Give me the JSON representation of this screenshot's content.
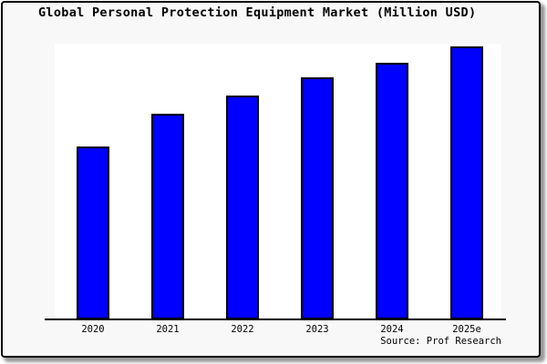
{
  "chart_data": {
    "type": "bar",
    "title": "Global Personal Protection Equipment Market (Million USD)",
    "categories": [
      "2020",
      "2021",
      "2022",
      "2023",
      "2024",
      "2025e"
    ],
    "values": [
      190,
      226,
      246,
      266,
      282,
      300
    ],
    "value_units": "relative units (no y-axis tick labels shown; values proportional to bar heights)",
    "xlabel": "",
    "ylabel": "",
    "ylim": [
      0,
      301
    ],
    "grid": false,
    "legend": false,
    "source": "Source: Prof Research"
  },
  "colors": {
    "bar_fill": "#0000ff",
    "bar_border": "#000000",
    "figure_bg": "#f8f8f8",
    "plot_bg": "#ffffff",
    "axis": "#000000",
    "title_text": "#000000"
  }
}
